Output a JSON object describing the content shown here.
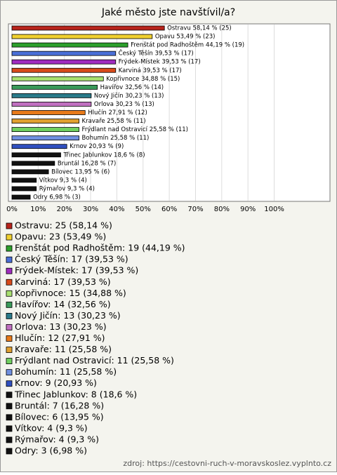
{
  "chart_data": {
    "type": "hbar",
    "title": "Jaké město jste navštívil/a?",
    "categories": [
      "Ostravu",
      "Opavu",
      "Frenštát pod Radhoštěm",
      "Český Těšín",
      "Frýdek-Místek",
      "Karviná",
      "Kopřivnoce",
      "Havířov",
      "Nový Jičín",
      "Orlova",
      "Hlučín",
      "Kravaře",
      "Frýdlant nad Ostravicí",
      "Bohumín",
      "Krnov",
      "Třinec Jablunkov",
      "Bruntál",
      "Bílovec",
      "Vítkov",
      "Rýmařov",
      "Odry"
    ],
    "values": [
      58.14,
      53.49,
      44.19,
      39.53,
      39.53,
      39.53,
      34.88,
      32.56,
      30.23,
      30.23,
      27.91,
      25.58,
      25.58,
      25.58,
      20.93,
      18.6,
      16.28,
      13.95,
      9.3,
      9.3,
      6.98
    ],
    "value_labels": [
      "Ostravu 58,14 % (25)",
      "Opavu 53,49 % (23)",
      "Frenštát pod Radhoštěm 44,19 % (19)",
      "Český Těšín 39,53 % (17)",
      "Frýdek-Místek 39,53 % (17)",
      "Karviná 39,53 % (17)",
      "Kopřivnoce 34,88 % (15)",
      "Havířov 32,56 % (14)",
      "Nový Jičín 30,23 % (13)",
      "Orlova 30,23 % (13)",
      "Hlučín 27,91 % (12)",
      "Kravaře 25,58 % (11)",
      "Frýdlant nad Ostravicí 25,58 % (11)",
      "Bohumín 25,58 % (11)",
      "Krnov 20,93 % (9)",
      "Třinec Jablunkov 18,6 % (8)",
      "Bruntál 16,28 % (7)",
      "Bílovec 13,95 % (6)",
      "Vítkov 9,3 % (4)",
      "Rýmařov 9,3 % (4)",
      "Odry 6,98 % (3)"
    ],
    "legend": [
      "Ostravu: 25 (58,14 %)",
      "Opavu: 23 (53,49 %)",
      "Frenštát pod Radhoštěm: 19 (44,19 %)",
      "Český Těšín: 17 (39,53 %)",
      "Frýdek-Místek: 17 (39,53 %)",
      "Karviná: 17 (39,53 %)",
      "Kopřivnoce: 15 (34,88 %)",
      "Havířov: 14 (32,56 %)",
      "Nový Jičín: 13 (30,23 %)",
      "Orlova: 13 (30,23 %)",
      "Hlučín: 12 (27,91 %)",
      "Kravaře: 11 (25,58 %)",
      "Frýdlant nad Ostravicí: 11 (25,58 %)",
      "Bohumín: 11 (25,58 %)",
      "Krnov: 9 (20,93 %)",
      "Třinec Jablunkov: 8 (18,6 %)",
      "Bruntál: 7 (16,28 %)",
      "Bílovec: 6 (13,95 %)",
      "Vítkov: 4 (9,3 %)",
      "Rýmařov: 4 (9,3 %)",
      "Odry: 3 (6,98 %)"
    ],
    "colors": [
      "#b8241c",
      "#f0d030",
      "#2ca02c",
      "#4a6fd8",
      "#a02cc0",
      "#d84a1a",
      "#a8e070",
      "#3a9a5a",
      "#2a7a8a",
      "#c070c0",
      "#e87a1a",
      "#e0a030",
      "#70d060",
      "#7090e0",
      "#3050c0",
      "#111111",
      "#111111",
      "#111111",
      "#111111",
      "#111111",
      "#111111"
    ],
    "xlim": [
      0,
      121
    ],
    "xticks": [
      {
        "value": 0,
        "label": "0%"
      },
      {
        "value": 10,
        "label": "10%"
      },
      {
        "value": 20,
        "label": "20%"
      },
      {
        "value": 30,
        "label": "30%"
      },
      {
        "value": 40,
        "label": "40%"
      },
      {
        "value": 50,
        "label": "50%"
      },
      {
        "value": 60,
        "label": "60%"
      },
      {
        "value": 70,
        "label": "70%"
      },
      {
        "value": 80,
        "label": "80%"
      },
      {
        "value": 90,
        "label": "90%"
      },
      {
        "value": 100,
        "label": "100%"
      }
    ],
    "grid": true,
    "source": "zdroj: https://cestovni-ruch-v-moravskoslez.vyplnto.cz"
  }
}
